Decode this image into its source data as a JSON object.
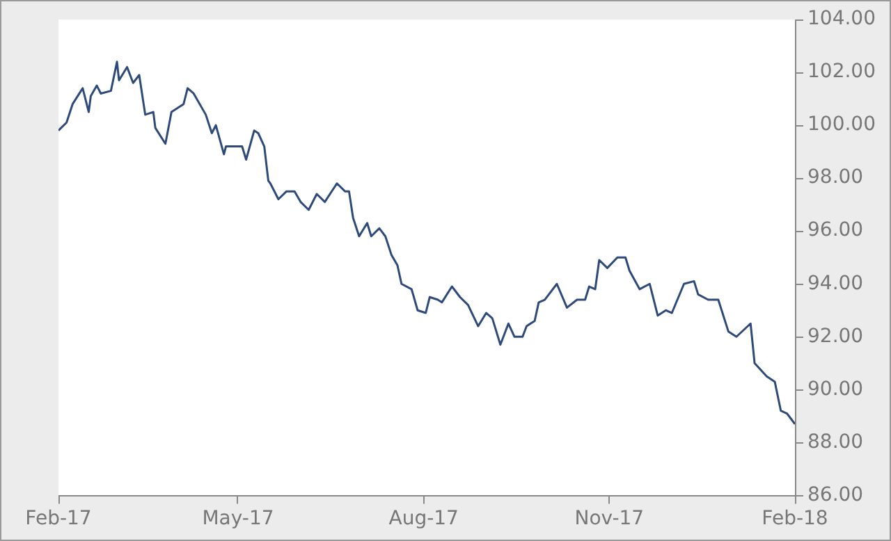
{
  "chart_data": {
    "type": "line",
    "xlim": [
      "2017-02-01",
      "2018-02-01"
    ],
    "xticks": [
      {
        "value": "2017-02-01",
        "label": "Feb-17"
      },
      {
        "value": "2017-05-01",
        "label": "May-17"
      },
      {
        "value": "2017-08-01",
        "label": "Aug-17"
      },
      {
        "value": "2017-11-01",
        "label": "Nov-17"
      },
      {
        "value": "2018-02-01",
        "label": "Feb-18"
      }
    ],
    "ylim": [
      86,
      104
    ],
    "yticks": [
      {
        "value": 86,
        "label": "86.00"
      },
      {
        "value": 88,
        "label": "88.00"
      },
      {
        "value": 90,
        "label": "90.00"
      },
      {
        "value": 92,
        "label": "92.00"
      },
      {
        "value": 94,
        "label": "94.00"
      },
      {
        "value": 96,
        "label": "96.00"
      },
      {
        "value": 98,
        "label": "98.00"
      },
      {
        "value": 100,
        "label": "100.00"
      },
      {
        "value": 102,
        "label": "102.00"
      },
      {
        "value": 104,
        "label": "104.00"
      }
    ],
    "grid": false,
    "legend": false,
    "marker": "none",
    "line_style": "solid",
    "series": [
      {
        "color": "#2e4a7a",
        "x": [
          "2017-02-01",
          "2017-02-05",
          "2017-02-08",
          "2017-02-13",
          "2017-02-16",
          "2017-02-17",
          "2017-02-20",
          "2017-02-22",
          "2017-02-27",
          "2017-03-02",
          "2017-03-03",
          "2017-03-07",
          "2017-03-10",
          "2017-03-13",
          "2017-03-16",
          "2017-03-20",
          "2017-03-21",
          "2017-03-26",
          "2017-03-29",
          "2017-04-04",
          "2017-04-06",
          "2017-04-09",
          "2017-04-15",
          "2017-04-18",
          "2017-04-20",
          "2017-04-24",
          "2017-04-25",
          "2017-05-03",
          "2017-05-05",
          "2017-05-09",
          "2017-05-11",
          "2017-05-14",
          "2017-05-16",
          "2017-05-17",
          "2017-05-21",
          "2017-05-25",
          "2017-05-27",
          "2017-05-29",
          "2017-06-01",
          "2017-06-05",
          "2017-06-09",
          "2017-06-13",
          "2017-06-19",
          "2017-06-23",
          "2017-06-25",
          "2017-06-27",
          "2017-06-30",
          "2017-07-04",
          "2017-07-06",
          "2017-07-10",
          "2017-07-13",
          "2017-07-16",
          "2017-07-19",
          "2017-07-21",
          "2017-07-26",
          "2017-07-29",
          "2017-08-02",
          "2017-08-04",
          "2017-08-08",
          "2017-08-10",
          "2017-08-15",
          "2017-08-19",
          "2017-08-23",
          "2017-08-28",
          "2017-09-01",
          "2017-09-04",
          "2017-09-08",
          "2017-09-12",
          "2017-09-15",
          "2017-09-19",
          "2017-09-21",
          "2017-09-25",
          "2017-09-27",
          "2017-09-30",
          "2017-10-06",
          "2017-10-11",
          "2017-10-16",
          "2017-10-20",
          "2017-10-22",
          "2017-10-25",
          "2017-10-27",
          "2017-10-31",
          "2017-11-05",
          "2017-11-09",
          "2017-11-11",
          "2017-11-16",
          "2017-11-21",
          "2017-11-25",
          "2017-11-29",
          "2017-12-02",
          "2017-12-08",
          "2017-12-13",
          "2017-12-15",
          "2017-12-20",
          "2017-12-25",
          "2017-12-30",
          "2018-01-03",
          "2018-01-10",
          "2018-01-12",
          "2018-01-18",
          "2018-01-22",
          "2018-01-25",
          "2018-01-28",
          "2018-02-01"
        ],
        "values": [
          99.8,
          100.1,
          100.8,
          101.4,
          100.5,
          101.1,
          101.5,
          101.2,
          101.3,
          102.4,
          101.7,
          102.2,
          101.6,
          101.9,
          100.4,
          100.5,
          99.9,
          99.3,
          100.5,
          100.8,
          101.4,
          101.2,
          100.4,
          99.7,
          100.0,
          98.9,
          99.2,
          99.2,
          98.7,
          99.8,
          99.7,
          99.2,
          97.9,
          97.8,
          97.2,
          97.5,
          97.5,
          97.5,
          97.1,
          96.8,
          97.4,
          97.1,
          97.8,
          97.5,
          97.5,
          96.5,
          95.8,
          96.3,
          95.8,
          96.1,
          95.8,
          95.1,
          94.7,
          94.0,
          93.8,
          93.0,
          92.9,
          93.5,
          93.4,
          93.3,
          93.9,
          93.5,
          93.2,
          92.4,
          92.9,
          92.7,
          91.7,
          92.5,
          92.0,
          92.0,
          92.4,
          92.6,
          93.3,
          93.4,
          94.0,
          93.1,
          93.4,
          93.4,
          93.9,
          93.8,
          94.9,
          94.6,
          95.0,
          95.0,
          94.5,
          93.8,
          94.0,
          92.8,
          93.0,
          92.9,
          94.0,
          94.1,
          93.6,
          93.4,
          93.4,
          92.2,
          92.0,
          92.5,
          91.0,
          90.5,
          90.3,
          89.2,
          89.1,
          88.7
        ]
      }
    ]
  }
}
